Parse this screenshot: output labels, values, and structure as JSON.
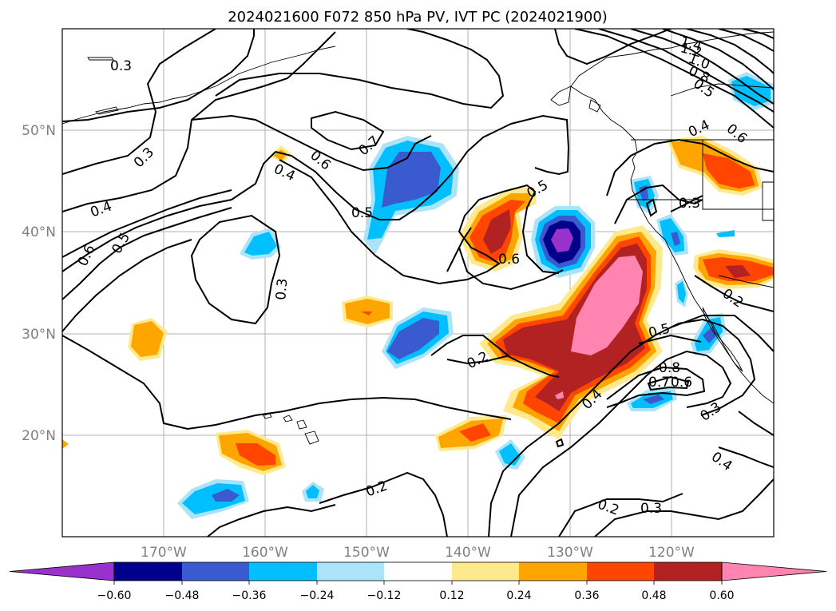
{
  "title": "2024021600 F072 850 hPa PV, IVT PC (2024021900)",
  "lat_ticks": [
    "50°N",
    "40°N",
    "30°N",
    "20°N"
  ],
  "lon_ticks": [
    "170°W",
    "160°W",
    "150°W",
    "140°W",
    "130°W",
    "120°W"
  ],
  "colorbar": {
    "colors": [
      "#9932cc",
      "#00008b",
      "#3a5bcf",
      "#00bfff",
      "#abe3f8",
      "#ffffff",
      "#feea8c",
      "#ffa500",
      "#ff4500",
      "#b22222",
      "#ff85b0"
    ],
    "ticks": [
      "−0.60",
      "−0.48",
      "−0.36",
      "−0.24",
      "−0.12",
      "0.12",
      "0.24",
      "0.36",
      "0.48",
      "0.60"
    ]
  },
  "contour_labels": [
    "0.3",
    "0.3",
    "0.4",
    "0.6",
    "0.5",
    "0.6",
    "0.4",
    "0.7",
    "0.5",
    "0.6",
    "0.5",
    "0.3",
    "0.2",
    "0.2",
    "0.2",
    "0.3",
    "0.4",
    "0.5",
    "0.8",
    "0.7",
    "0.6",
    "0.3",
    "0.4",
    "0.3",
    "0.4",
    "0.6",
    "0.5",
    "0.8",
    "1.0",
    "1.2",
    "1.4",
    "0.2"
  ]
}
